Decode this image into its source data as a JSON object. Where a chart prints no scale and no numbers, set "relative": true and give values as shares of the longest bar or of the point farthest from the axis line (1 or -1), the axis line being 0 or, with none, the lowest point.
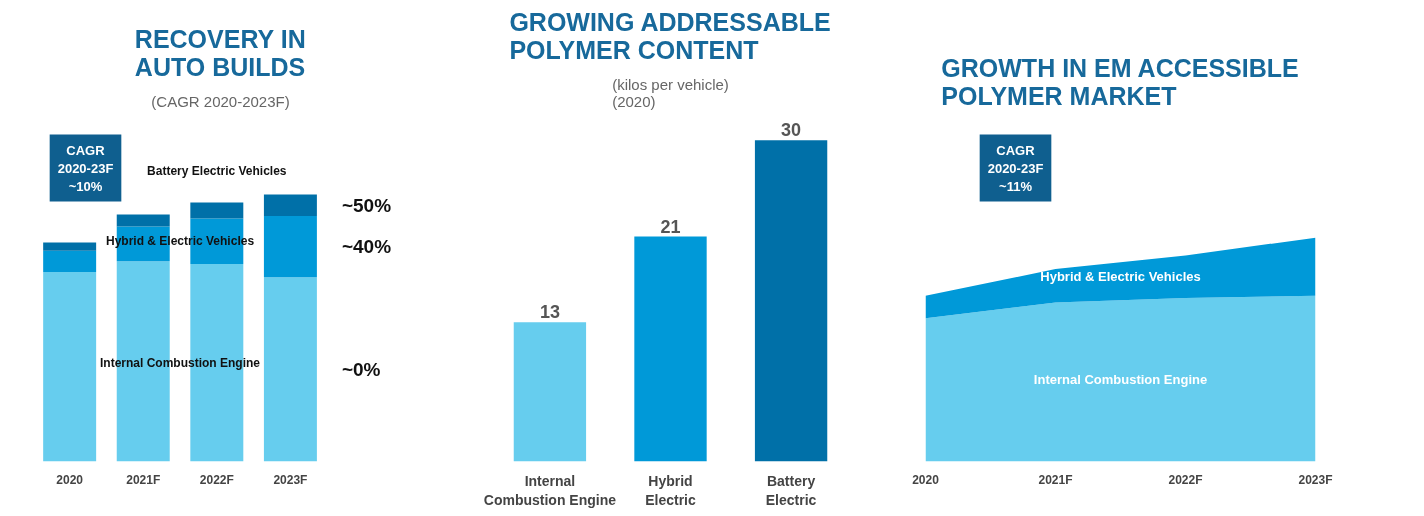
{
  "chart_data": [
    {
      "type": "bar",
      "title": "RECOVERY IN\nAUTO BUILDS",
      "subtitle": "(CAGR 2020-2023F)",
      "categories": [
        "2020",
        "2021F",
        "2022F",
        "2023F"
      ],
      "stacked": true,
      "relative": true,
      "legend": false,
      "grid": false,
      "series": [
        {
          "name": "Internal Combustion Engine",
          "color": "#66cdee",
          "values": [
            0.71,
            0.75,
            0.74,
            0.69
          ]
        },
        {
          "name": "Hybrid & Electric Vehicles",
          "color": "#0099d8",
          "values": [
            0.08,
            0.13,
            0.17,
            0.23
          ]
        },
        {
          "name": "Battery Electric Vehicles",
          "color": "#0070a8",
          "values": [
            0.03,
            0.045,
            0.06,
            0.08
          ]
        }
      ],
      "annotations": [
        "CAGR\n2020-23F\n~10%",
        "~0%",
        "~40%",
        "~50%"
      ]
    },
    {
      "type": "bar",
      "title": "GROWING ADDRESSABLE\nPOLYMER CONTENT",
      "subtitle": "(kilos per vehicle)\n(2020)",
      "categories": [
        "Internal\nCombustion Engine",
        "Hybrid\nElectric",
        "Battery\nElectric"
      ],
      "values": [
        13,
        21,
        30
      ],
      "colors": [
        "#66cdee",
        "#0099d8",
        "#0070a8"
      ],
      "data_labels": true,
      "tick_labels": "x",
      "legend": false,
      "grid": false
    },
    {
      "type": "area",
      "title": "GROWTH IN EM ACCESSIBLE\nPOLYMER MARKET",
      "categories": [
        "2020",
        "2021F",
        "2022F",
        "2023F"
      ],
      "stacked": true,
      "relative": true,
      "legend": false,
      "grid": false,
      "series": [
        {
          "name": "Internal Combustion Engine",
          "color": "#66cdee",
          "values": [
            0.64,
            0.71,
            0.73,
            0.74
          ]
        },
        {
          "name": "Hybrid & Electric Vehicles",
          "color": "#0099d8",
          "values": [
            0.1,
            0.15,
            0.19,
            0.26
          ]
        }
      ],
      "annotations": [
        "CAGR\n2020-23F\n~11%"
      ]
    }
  ]
}
